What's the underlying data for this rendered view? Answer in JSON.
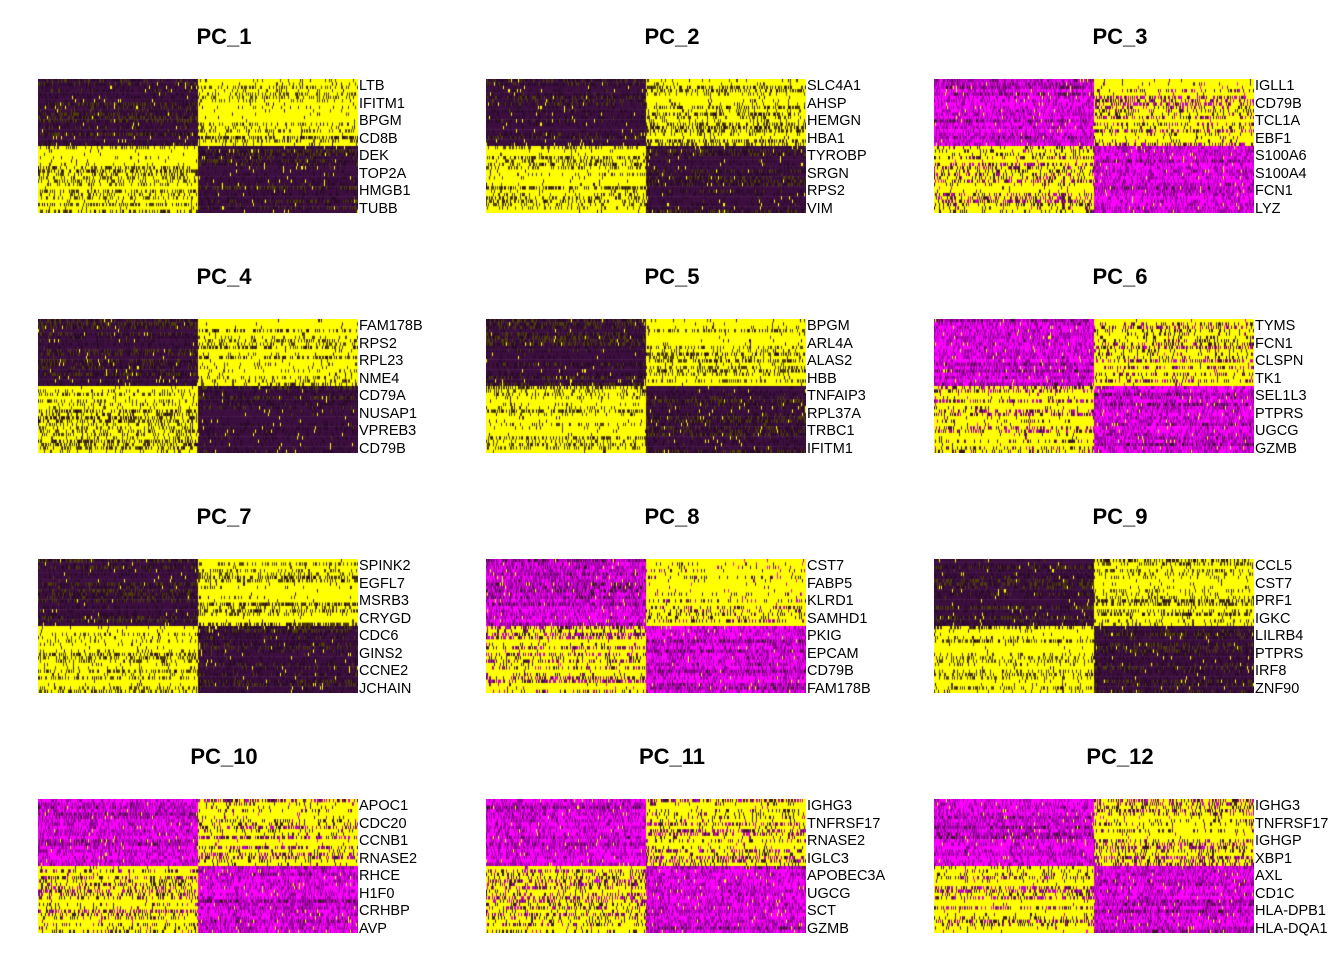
{
  "colors": {
    "low": "#ff00ff",
    "mid": "#000000",
    "high": "#ffff00",
    "deep": "#8b008b"
  },
  "chart_data": [
    {
      "type": "heatmap",
      "title": "PC_1",
      "genes": [
        "LTB",
        "IFITM1",
        "BPGM",
        "CD8B",
        "DEK",
        "TOP2A",
        "HMGB1",
        "TUBB"
      ]
    },
    {
      "type": "heatmap",
      "title": "PC_2",
      "genes": [
        "SLC4A1",
        "AHSP",
        "HEMGN",
        "HBA1",
        "TYROBP",
        "SRGN",
        "RPS2",
        "VIM"
      ]
    },
    {
      "type": "heatmap",
      "title": "PC_3",
      "genes": [
        "IGLL1",
        "CD79B",
        "TCL1A",
        "EBF1",
        "S100A6",
        "S100A4",
        "FCN1",
        "LYZ"
      ]
    },
    {
      "type": "heatmap",
      "title": "PC_4",
      "genes": [
        "FAM178B",
        "RPS2",
        "RPL23",
        "NME4",
        "CD79A",
        "NUSAP1",
        "VPREB3",
        "CD79B"
      ]
    },
    {
      "type": "heatmap",
      "title": "PC_5",
      "genes": [
        "BPGM",
        "ARL4A",
        "ALAS2",
        "HBB",
        "TNFAIP3",
        "RPL37A",
        "TRBC1",
        "IFITM1"
      ]
    },
    {
      "type": "heatmap",
      "title": "PC_6",
      "genes": [
        "TYMS",
        "FCN1",
        "CLSPN",
        "TK1",
        "SEL1L3",
        "PTPRS",
        "UGCG",
        "GZMB"
      ]
    },
    {
      "type": "heatmap",
      "title": "PC_7",
      "genes": [
        "SPINK2",
        "EGFL7",
        "MSRB3",
        "CRYGD",
        "CDC6",
        "GINS2",
        "CCNE2",
        "JCHAIN"
      ]
    },
    {
      "type": "heatmap",
      "title": "PC_8",
      "genes": [
        "CST7",
        "FABP5",
        "KLRD1",
        "SAMHD1",
        "PKIG",
        "EPCAM",
        "CD79B",
        "FAM178B"
      ]
    },
    {
      "type": "heatmap",
      "title": "PC_9",
      "genes": [
        "CCL5",
        "CST7",
        "PRF1",
        "IGKC",
        "LILRB4",
        "PTPRS",
        "IRF8",
        "ZNF90"
      ]
    },
    {
      "type": "heatmap",
      "title": "PC_10",
      "genes": [
        "APOC1",
        "CDC20",
        "CCNB1",
        "RNASE2",
        "RHCE",
        "H1F0",
        "CRHBP",
        "AVP"
      ]
    },
    {
      "type": "heatmap",
      "title": "PC_11",
      "genes": [
        "IGHG3",
        "TNFRSF17",
        "RNASE2",
        "IGLC3",
        "APOBEC3A",
        "UGCG",
        "SCT",
        "GZMB"
      ]
    },
    {
      "type": "heatmap",
      "title": "PC_12",
      "genes": [
        "IGHG3",
        "TNFRSF17",
        "IGHGP",
        "XBP1",
        "AXL",
        "CD1C",
        "HLA-DPB1",
        "HLA-DQA1"
      ]
    }
  ]
}
